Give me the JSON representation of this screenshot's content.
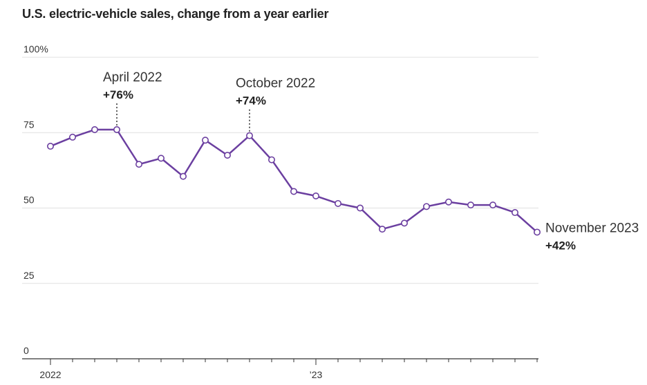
{
  "chart_data": {
    "type": "line",
    "title": "U.S. electric-vehicle sales, change from a year earlier",
    "xlabel": "",
    "ylabel": "",
    "ylim": [
      0,
      100
    ],
    "yticks": [
      {
        "value": 0,
        "label": "0"
      },
      {
        "value": 25,
        "label": "25"
      },
      {
        "value": 50,
        "label": "50"
      },
      {
        "value": 75,
        "label": "75"
      },
      {
        "value": 100,
        "label": "100%"
      }
    ],
    "x_axis_labels": [
      {
        "date": "2022-01",
        "label": "2022"
      },
      {
        "date": "2023-01",
        "label": "’23"
      }
    ],
    "grid": true,
    "line_color": "#6b3fa0",
    "series": [
      {
        "x": [
          "2022-01",
          "2022-02",
          "2022-03",
          "2022-04",
          "2022-05",
          "2022-06",
          "2022-07",
          "2022-08",
          "2022-09",
          "2022-10",
          "2022-11",
          "2022-12",
          "2023-01",
          "2023-02",
          "2023-03",
          "2023-04",
          "2023-05",
          "2023-06",
          "2023-07",
          "2023-08",
          "2023-09",
          "2023-10",
          "2023-11"
        ],
        "values": [
          70.5,
          73.5,
          76,
          76,
          64.5,
          66.5,
          60.5,
          72.5,
          67.5,
          74,
          66,
          55.5,
          54,
          51.5,
          50,
          43,
          45,
          50.5,
          52,
          51,
          51,
          48.5,
          42
        ]
      }
    ],
    "annotations": [
      {
        "date": "2022-04",
        "value": 76,
        "label": "April 2022",
        "text": "+76%"
      },
      {
        "date": "2022-10",
        "value": 74,
        "label": "October 2022",
        "text": "+74%"
      },
      {
        "date": "2023-11",
        "value": 42,
        "label": "November 2023",
        "text": "+42%"
      }
    ]
  }
}
